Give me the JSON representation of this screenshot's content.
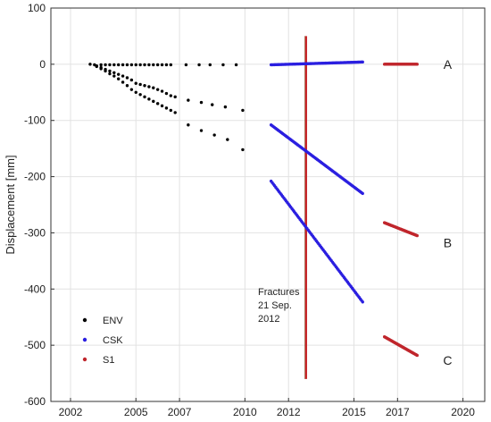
{
  "chart_data": {
    "type": "scatter",
    "title": "",
    "xlabel": "",
    "ylabel": "Displacement [mm]",
    "xlim": [
      2001.1,
      2021.0
    ],
    "ylim": [
      -600,
      100
    ],
    "xticks": [
      2002,
      2005,
      2007,
      2010,
      2012,
      2015,
      2017,
      2020
    ],
    "yticks": [
      100,
      0,
      -100,
      -200,
      -300,
      -400,
      -500,
      -600
    ],
    "grid": true,
    "legend_position": "bottom-left",
    "series": [
      {
        "name": "ENV",
        "color": "#000000",
        "segments": [
          {
            "points": [
              [
                2002.9,
                0
              ],
              [
                2003.1,
                -1
              ],
              [
                2003.4,
                -1
              ],
              [
                2003.6,
                -1
              ],
              [
                2003.8,
                -1
              ],
              [
                2004.0,
                -1
              ],
              [
                2004.2,
                -1
              ],
              [
                2004.4,
                -1
              ],
              [
                2004.6,
                -1
              ],
              [
                2004.8,
                -1
              ],
              [
                2005.0,
                -1
              ],
              [
                2005.2,
                -1
              ],
              [
                2005.4,
                -1
              ],
              [
                2005.6,
                -1
              ],
              [
                2005.8,
                -1
              ],
              [
                2006.0,
                -1
              ],
              [
                2006.2,
                -1
              ],
              [
                2006.4,
                -1
              ],
              [
                2006.6,
                -1
              ],
              [
                2007.3,
                -1
              ],
              [
                2007.9,
                -1
              ],
              [
                2008.4,
                -1
              ],
              [
                2009.0,
                -1
              ],
              [
                2009.6,
                -1
              ]
            ]
          },
          {
            "points": [
              [
                2003.2,
                -3
              ],
              [
                2003.4,
                -6
              ],
              [
                2003.6,
                -9
              ],
              [
                2003.8,
                -12
              ],
              [
                2004.0,
                -15
              ],
              [
                2004.2,
                -18
              ],
              [
                2004.4,
                -21
              ],
              [
                2004.6,
                -24
              ],
              [
                2004.8,
                -28
              ],
              [
                2005.0,
                -34
              ],
              [
                2005.2,
                -36
              ],
              [
                2005.4,
                -38
              ],
              [
                2005.6,
                -40
              ],
              [
                2005.8,
                -42
              ],
              [
                2006.0,
                -45
              ],
              [
                2006.2,
                -48
              ],
              [
                2006.4,
                -52
              ],
              [
                2006.6,
                -56
              ],
              [
                2006.8,
                -58
              ],
              [
                2007.4,
                -64
              ],
              [
                2008.0,
                -68
              ],
              [
                2008.5,
                -72
              ],
              [
                2009.1,
                -76
              ],
              [
                2009.9,
                -82
              ]
            ]
          },
          {
            "points": [
              [
                2003.2,
                -4
              ],
              [
                2003.4,
                -8
              ],
              [
                2003.6,
                -12
              ],
              [
                2003.8,
                -17
              ],
              [
                2004.0,
                -21
              ],
              [
                2004.2,
                -26
              ],
              [
                2004.4,
                -32
              ],
              [
                2004.6,
                -38
              ],
              [
                2004.8,
                -45
              ],
              [
                2005.0,
                -50
              ],
              [
                2005.2,
                -54
              ],
              [
                2005.4,
                -58
              ],
              [
                2005.6,
                -62
              ],
              [
                2005.8,
                -66
              ],
              [
                2006.0,
                -70
              ],
              [
                2006.2,
                -74
              ],
              [
                2006.4,
                -78
              ],
              [
                2006.6,
                -82
              ],
              [
                2006.8,
                -86
              ],
              [
                2007.4,
                -108
              ],
              [
                2008.0,
                -118
              ],
              [
                2008.6,
                -126
              ],
              [
                2009.2,
                -134
              ],
              [
                2009.9,
                -152
              ]
            ]
          }
        ]
      },
      {
        "name": "CSK",
        "color": "#2b1fe0",
        "segments": [
          {
            "start": [
              2011.2,
              -1
            ],
            "end": [
              2015.4,
              4
            ],
            "n": 80
          },
          {
            "start": [
              2011.2,
              -108
            ],
            "end": [
              2015.4,
              -230
            ],
            "n": 80
          },
          {
            "start": [
              2011.2,
              -208
            ],
            "end": [
              2015.4,
              -423
            ],
            "n": 80
          }
        ]
      },
      {
        "name": "S1",
        "color": "#c0262c",
        "segments": [
          {
            "start": [
              2016.4,
              0
            ],
            "end": [
              2017.9,
              0
            ],
            "n": 50
          },
          {
            "start": [
              2016.4,
              -282
            ],
            "end": [
              2017.9,
              -305
            ],
            "n": 50
          },
          {
            "start": [
              2016.4,
              -485
            ],
            "end": [
              2017.9,
              -518
            ],
            "n": 50
          }
        ]
      }
    ],
    "event_line": {
      "x": 2012.8,
      "y_top": 50,
      "y_bottom": -560,
      "color": "#c8252a",
      "label_lines": [
        "Fractures",
        "21 Sep.",
        "2012"
      ]
    },
    "curve_labels": [
      {
        "text": "A",
        "x": 2019.3,
        "y": 0
      },
      {
        "text": "B",
        "x": 2019.3,
        "y": -318
      },
      {
        "text": "C",
        "x": 2019.3,
        "y": -527
      }
    ]
  }
}
